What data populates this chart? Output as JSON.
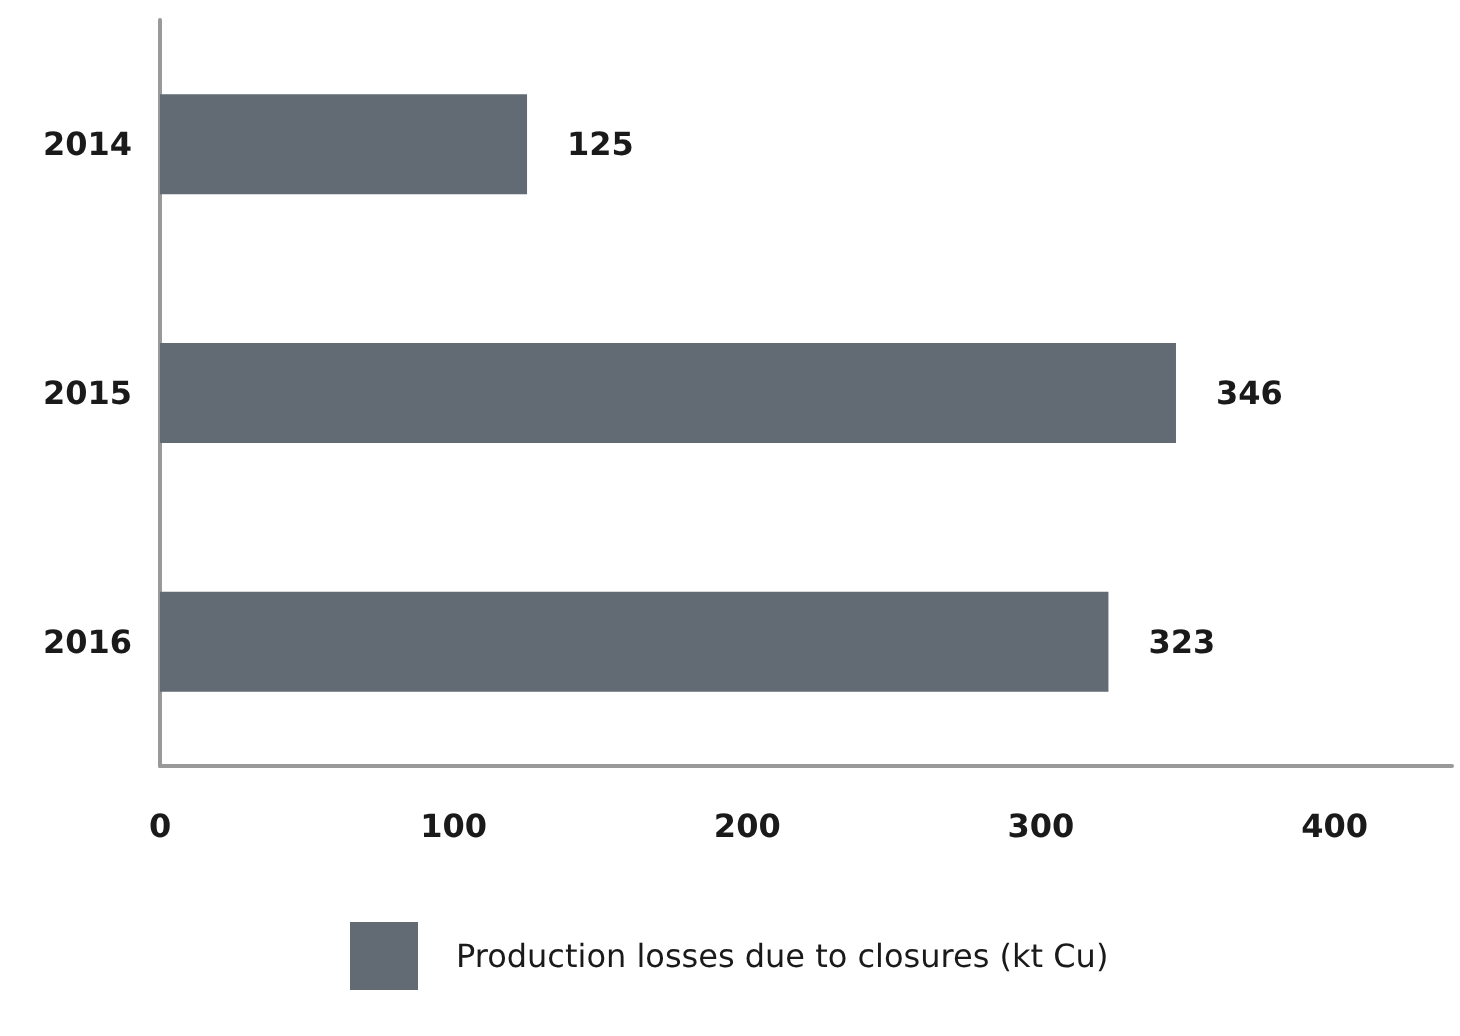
{
  "chart_data": {
    "type": "bar",
    "orientation": "horizontal",
    "categories": [
      "2014",
      "2015",
      "2016"
    ],
    "series": [
      {
        "name": "Production losses due to closures (kt Cu)",
        "color": "#626a74",
        "values": [
          125,
          346,
          323
        ]
      }
    ],
    "xlim": [
      0,
      440
    ],
    "xticks": [
      0,
      100,
      200,
      300,
      400
    ],
    "grid": false,
    "legend": "bottom",
    "data_labels": true
  }
}
